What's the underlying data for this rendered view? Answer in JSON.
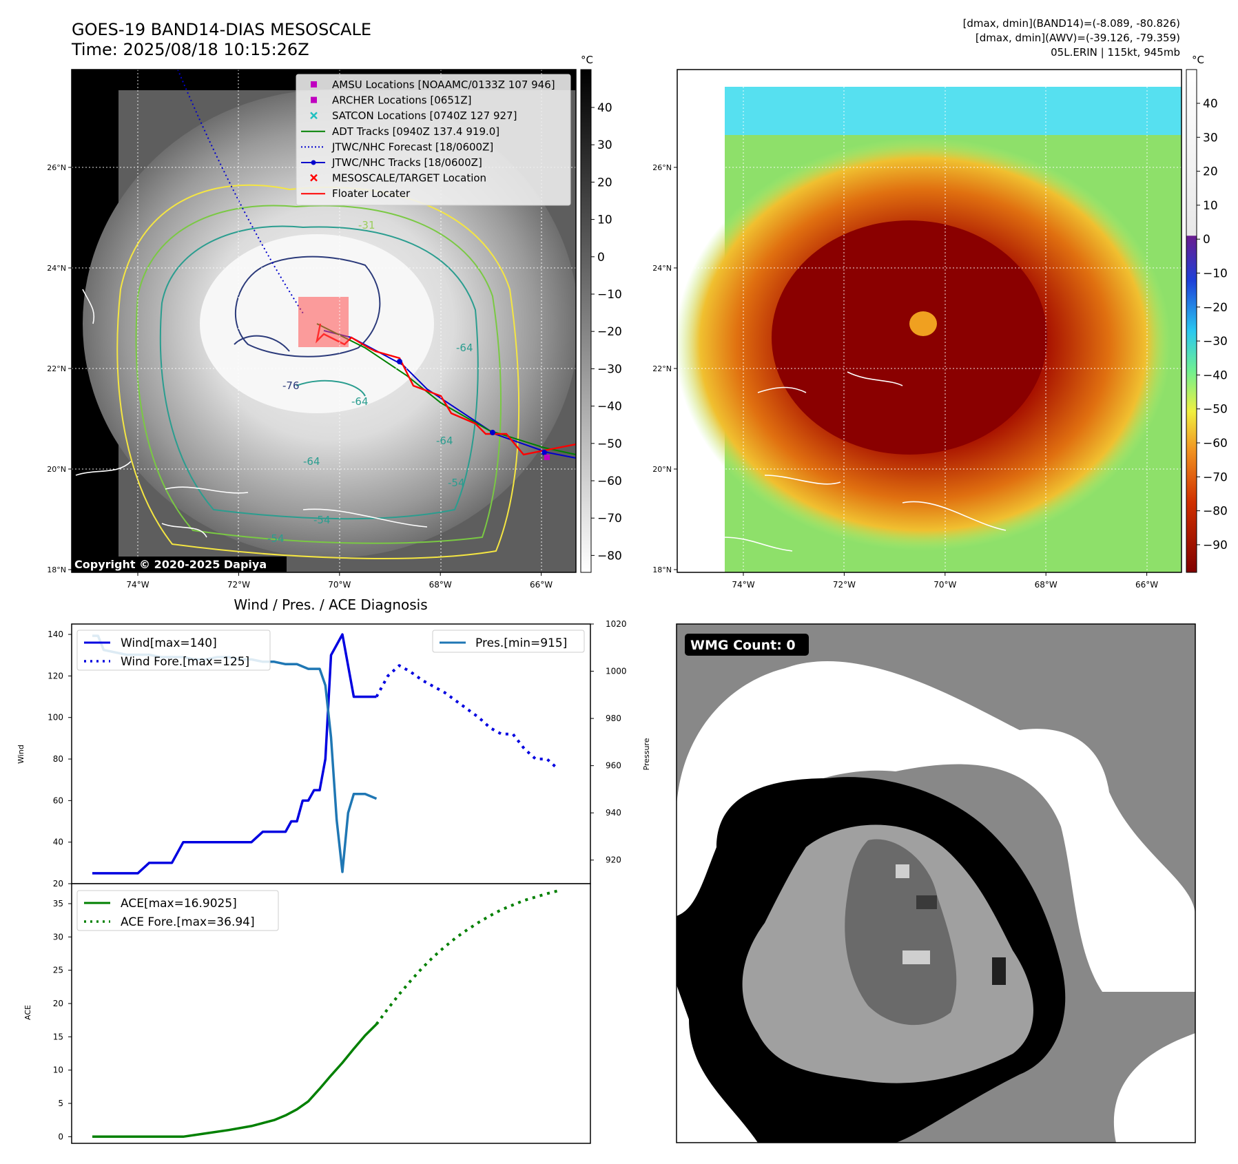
{
  "header": {
    "title": "GOES-19 BAND14-DIAS MESOSCALE",
    "time": "Time: 2025/08/18 10:15:26Z",
    "stats_line1": "[dmax, dmin](BAND14)=(-8.089, -80.826)",
    "stats_line2": "[dmax, dmin](AWV)=(-39.126, -79.359)",
    "stats_line3": "05L.ERIN | 115kt, 945mb"
  },
  "map_axes": {
    "lat_labels": [
      "26°N",
      "24°N",
      "22°N",
      "20°N",
      "18°N"
    ],
    "lon_labels": [
      "74°W",
      "72°W",
      "70°W",
      "68°W",
      "66°W"
    ],
    "lat_values": [
      26,
      24,
      22,
      20,
      18
    ],
    "lon_values": [
      -74,
      -72,
      -70,
      -68,
      -66
    ]
  },
  "ir_panel": {
    "colorbar_unit": "°C",
    "colorbar_ticks": [
      "40",
      "30",
      "20",
      "10",
      "0",
      "−10",
      "−20",
      "−30",
      "−40",
      "−50",
      "−60",
      "−70",
      "−80"
    ],
    "copyright": "Copyright © 2020-2025 Dapiya",
    "contour_labels": [
      "-31",
      "-76",
      "-64",
      "-64",
      "-64",
      "-64",
      "-54",
      "-54",
      "-54"
    ],
    "legend": [
      {
        "label": "AMSU Locations [NOAAMC/0133Z 107 946]",
        "color": "#c000c0",
        "marker": "square"
      },
      {
        "label": "ARCHER Locations [0651Z]",
        "color": "#c000c0",
        "marker": "square"
      },
      {
        "label": "SATCON Locations [0740Z 127 927]",
        "color": "#20c0c0",
        "marker": "x"
      },
      {
        "label": "ADT Tracks [0940Z 137.4 919.0]",
        "color": "#008000",
        "marker": "line"
      },
      {
        "label": "JTWC/NHC Forecast [18/0600Z]",
        "color": "#0000cc",
        "marker": "dotted"
      },
      {
        "label": "JTWC/NHC Tracks [18/0600Z]",
        "color": "#0000cc",
        "marker": "line-dot"
      },
      {
        "label": "MESOSCALE/TARGET Location",
        "color": "#ff0000",
        "marker": "x"
      },
      {
        "label": "Floater Locater",
        "color": "#ff0000",
        "marker": "line"
      }
    ]
  },
  "awv_panel": {
    "colorbar_unit": "°C",
    "colorbar_ticks": [
      "40",
      "30",
      "20",
      "10",
      "0",
      "−10",
      "−20",
      "−30",
      "−40",
      "−50",
      "−60",
      "−70",
      "−80",
      "−90"
    ]
  },
  "wmg_panel": {
    "badge": "WMG Count: 0"
  },
  "chart_data": [
    {
      "type": "line",
      "title": "Wind / Pres. / ACE Diagnosis",
      "ylabel": "Wind",
      "y2label": "Pressure",
      "ylim": [
        20,
        145
      ],
      "y2lim": [
        910,
        1020
      ],
      "yticks": [
        20,
        40,
        60,
        80,
        100,
        120,
        140
      ],
      "y2ticks": [
        920,
        940,
        960,
        980,
        1000,
        1020
      ],
      "x_range": [
        0,
        42
      ],
      "series": [
        {
          "name": "Wind[max=140]",
          "axis": "left",
          "style": "solid",
          "color": "#0000e0",
          "x": [
            0,
            1,
            2,
            3,
            4,
            5,
            6,
            7,
            8,
            9,
            10,
            11,
            12,
            13,
            14,
            15,
            16,
            17,
            17.5,
            18,
            18.5,
            19,
            19.5,
            20,
            20.5,
            21,
            22,
            23,
            24,
            25
          ],
          "y": [
            25,
            25,
            25,
            25,
            25,
            30,
            30,
            30,
            40,
            40,
            40,
            40,
            40,
            40,
            40,
            45,
            45,
            45,
            50,
            50,
            60,
            60,
            65,
            65,
            80,
            130,
            140,
            110,
            110,
            110
          ]
        },
        {
          "name": "Wind Fore.[max=125]",
          "axis": "left",
          "style": "dotted",
          "color": "#0000e0",
          "x": [
            25,
            26,
            27,
            28,
            29,
            30,
            31,
            32,
            33,
            34,
            35,
            36,
            37,
            38,
            39,
            40,
            41
          ],
          "y": [
            110,
            120,
            125,
            122,
            118,
            115,
            112,
            108,
            104,
            100,
            95,
            92,
            92,
            85,
            80,
            80,
            75
          ]
        },
        {
          "name": "Pres.[min=915]",
          "axis": "right",
          "style": "solid",
          "color": "#1f77b4",
          "x": [
            0,
            0.5,
            1,
            2,
            3,
            4,
            5,
            6,
            7,
            8,
            9,
            10,
            11,
            12,
            13,
            14,
            15,
            16,
            17,
            18,
            19,
            20,
            20.5,
            21,
            21.5,
            22,
            22.5,
            23,
            24,
            25
          ],
          "y": [
            1015,
            1015,
            1009,
            1008,
            1007,
            1007,
            1007,
            1006,
            1006,
            1006,
            1005,
            1005,
            1006,
            1006,
            1005,
            1005,
            1004,
            1004,
            1003,
            1003,
            1001,
            1001,
            994,
            972,
            937,
            915,
            940,
            948,
            948,
            946
          ]
        }
      ]
    },
    {
      "type": "line",
      "ylabel": "ACE",
      "ylim": [
        -1,
        38
      ],
      "yticks": [
        0,
        5,
        10,
        15,
        20,
        25,
        30,
        35
      ],
      "x_range": [
        0,
        42
      ],
      "series": [
        {
          "name": "ACE[max=16.9025]",
          "style": "solid",
          "color": "#008000",
          "x": [
            0,
            2,
            4,
            6,
            8,
            10,
            12,
            14,
            16,
            17,
            18,
            19,
            20,
            21,
            22,
            23,
            24,
            25
          ],
          "y": [
            0,
            0,
            0,
            0,
            0,
            0.5,
            1,
            1.6,
            2.5,
            3.2,
            4.1,
            5.3,
            7.2,
            9.2,
            11.1,
            13.2,
            15.2,
            16.9
          ]
        },
        {
          "name": "ACE Fore.[max=36.94]",
          "style": "dotted",
          "color": "#008000",
          "x": [
            25,
            26,
            27,
            28,
            29,
            30,
            31,
            32,
            33,
            34,
            35,
            36,
            37,
            38,
            39,
            40,
            41
          ],
          "y": [
            16.9,
            19.2,
            21.4,
            23.4,
            25.3,
            27.0,
            28.5,
            29.9,
            31.1,
            32.2,
            33.2,
            34.1,
            34.8,
            35.5,
            36.0,
            36.5,
            36.94
          ]
        }
      ]
    }
  ]
}
